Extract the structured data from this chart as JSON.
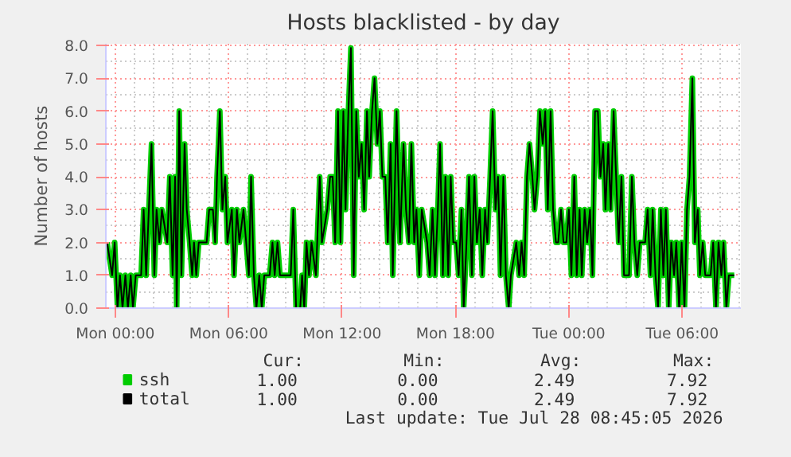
{
  "chart_data": {
    "type": "line",
    "title": "Hosts blacklisted - by day",
    "ylabel": "Number of hosts",
    "x": [
      "2026-07-26T23:34",
      "2026-07-26T23:50",
      "2026-07-26T23:58",
      "2026-07-27T00:07",
      "2026-07-27T00:15",
      "2026-07-27T00:23",
      "2026-07-27T00:32",
      "2026-07-27T00:40",
      "2026-07-27T00:49",
      "2026-07-27T00:56",
      "2026-07-27T01:05",
      "2026-07-27T01:22",
      "2026-07-27T01:30",
      "2026-07-27T01:38",
      "2026-07-27T01:55",
      "2026-07-27T02:04",
      "2026-07-27T02:11",
      "2026-07-27T02:20",
      "2026-07-27T02:28",
      "2026-07-27T02:45",
      "2026-07-27T02:53",
      "2026-07-27T03:02",
      "2026-07-27T03:10",
      "2026-07-27T03:15",
      "2026-07-27T03:23",
      "2026-07-27T03:30",
      "2026-07-27T03:40",
      "2026-07-27T03:47",
      "2026-07-27T03:56",
      "2026-07-27T04:04",
      "2026-07-27T04:10",
      "2026-07-27T04:17",
      "2026-07-27T04:25",
      "2026-07-27T04:50",
      "2026-07-27T04:58",
      "2026-07-27T05:10",
      "2026-07-27T05:17",
      "2026-07-27T05:23",
      "2026-07-27T05:32",
      "2026-07-27T05:40",
      "2026-07-27T05:49",
      "2026-07-27T05:56",
      "2026-07-27T06:10",
      "2026-07-27T06:17",
      "2026-07-27T06:26",
      "2026-07-27T06:34",
      "2026-07-27T06:47",
      "2026-07-27T07:04",
      "2026-07-27T07:11",
      "2026-07-27T07:20",
      "2026-07-27T07:28",
      "2026-07-27T07:37",
      "2026-07-27T07:45",
      "2026-07-27T07:53",
      "2026-07-27T08:10",
      "2026-07-27T08:19",
      "2026-07-27T08:26",
      "2026-07-27T08:35",
      "2026-07-27T08:43",
      "2026-07-27T09:17",
      "2026-07-27T09:25",
      "2026-07-27T09:34",
      "2026-07-27T09:47",
      "2026-07-27T09:53",
      "2026-07-27T10:00",
      "2026-07-27T10:07",
      "2026-07-27T10:15",
      "2026-07-27T10:23",
      "2026-07-27T10:37",
      "2026-07-27T10:49",
      "2026-07-27T10:56",
      "2026-07-27T11:13",
      "2026-07-27T11:22",
      "2026-07-27T11:30",
      "2026-07-27T11:38",
      "2026-07-27T11:47",
      "2026-07-27T11:55",
      "2026-07-27T12:04",
      "2026-07-27T12:11",
      "2026-07-27T12:20",
      "2026-07-27T12:28",
      "2026-07-27T12:37",
      "2026-07-27T12:45",
      "2026-07-27T12:53",
      "2026-07-27T13:02",
      "2026-07-27T13:10",
      "2026-07-27T13:19",
      "2026-07-27T13:26",
      "2026-07-27T13:35",
      "2026-07-27T13:43",
      "2026-07-27T13:52",
      "2026-07-27T14:00",
      "2026-07-27T14:08",
      "2026-07-27T14:17",
      "2026-07-27T14:25",
      "2026-07-27T14:34",
      "2026-07-27T14:41",
      "2026-07-27T14:53",
      "2026-07-27T15:04",
      "2026-07-27T15:15",
      "2026-07-27T15:23",
      "2026-07-27T15:32",
      "2026-07-27T15:40",
      "2026-07-27T15:49",
      "2026-07-27T15:56",
      "2026-07-27T16:05",
      "2026-07-27T16:13",
      "2026-07-27T16:30",
      "2026-07-27T16:38",
      "2026-07-27T16:47",
      "2026-07-27T16:55",
      "2026-07-27T17:04",
      "2026-07-27T17:11",
      "2026-07-27T17:20",
      "2026-07-27T17:28",
      "2026-07-27T17:37",
      "2026-07-27T17:45",
      "2026-07-27T17:53",
      "2026-07-27T18:02",
      "2026-07-27T18:10",
      "2026-07-27T18:19",
      "2026-07-27T18:26",
      "2026-07-27T18:35",
      "2026-07-27T18:43",
      "2026-07-27T18:52",
      "2026-07-27T19:00",
      "2026-07-27T19:08",
      "2026-07-27T19:17",
      "2026-07-27T19:25",
      "2026-07-27T19:34",
      "2026-07-27T19:41",
      "2026-07-27T19:50",
      "2026-07-27T19:58",
      "2026-07-27T20:07",
      "2026-07-27T20:15",
      "2026-07-27T20:23",
      "2026-07-27T20:32",
      "2026-07-27T20:40",
      "2026-07-27T20:49",
      "2026-07-27T20:56",
      "2026-07-27T21:13",
      "2026-07-27T21:22",
      "2026-07-27T21:30",
      "2026-07-27T21:38",
      "2026-07-27T21:47",
      "2026-07-27T21:55",
      "2026-07-27T22:04",
      "2026-07-27T22:11",
      "2026-07-27T22:20",
      "2026-07-27T22:28",
      "2026-07-27T22:37",
      "2026-07-27T22:45",
      "2026-07-27T22:53",
      "2026-07-27T23:02",
      "2026-07-27T23:10",
      "2026-07-27T23:19",
      "2026-07-27T23:26",
      "2026-07-27T23:35",
      "2026-07-27T23:43",
      "2026-07-27T23:52",
      "2026-07-28T00:00",
      "2026-07-28T00:08",
      "2026-07-28T00:17",
      "2026-07-28T00:25",
      "2026-07-28T00:34",
      "2026-07-28T00:41",
      "2026-07-28T00:50",
      "2026-07-28T00:58",
      "2026-07-28T01:07",
      "2026-07-28T01:15",
      "2026-07-28T01:23",
      "2026-07-28T01:32",
      "2026-07-28T01:40",
      "2026-07-28T01:49",
      "2026-07-28T01:56",
      "2026-07-28T02:05",
      "2026-07-28T02:13",
      "2026-07-28T02:22",
      "2026-07-28T02:30",
      "2026-07-28T02:38",
      "2026-07-28T02:47",
      "2026-07-28T02:55",
      "2026-07-28T03:11",
      "2026-07-28T03:20",
      "2026-07-28T03:28",
      "2026-07-28T03:37",
      "2026-07-28T03:45",
      "2026-07-28T04:02",
      "2026-07-28T04:10",
      "2026-07-28T04:19",
      "2026-07-28T04:26",
      "2026-07-28T04:35",
      "2026-07-28T04:43",
      "2026-07-28T04:52",
      "2026-07-28T05:00",
      "2026-07-28T05:08",
      "2026-07-28T05:17",
      "2026-07-28T05:25",
      "2026-07-28T05:34",
      "2026-07-28T05:41",
      "2026-07-28T05:50",
      "2026-07-28T05:58",
      "2026-07-28T06:07",
      "2026-07-28T06:15",
      "2026-07-28T06:23",
      "2026-07-28T06:32",
      "2026-07-28T06:40",
      "2026-07-28T06:49",
      "2026-07-28T06:56",
      "2026-07-28T07:05",
      "2026-07-28T07:13",
      "2026-07-28T07:30",
      "2026-07-28T07:38",
      "2026-07-28T07:47",
      "2026-07-28T07:55",
      "2026-07-28T08:04",
      "2026-07-28T08:11",
      "2026-07-28T08:20",
      "2026-07-28T08:28",
      "2026-07-28T08:45"
    ],
    "series": [
      {
        "name": "ssh",
        "color": "#00cc00",
        "values": [
          2,
          1,
          2,
          0,
          1,
          0,
          1,
          0,
          1,
          0,
          1,
          1,
          3,
          1,
          5,
          1,
          3,
          2,
          3,
          2,
          4,
          1,
          4,
          0,
          6,
          1,
          5,
          3,
          2,
          1,
          2,
          1,
          2,
          2,
          3,
          3,
          2,
          4,
          6,
          3,
          4,
          2,
          3,
          1,
          3,
          2,
          3,
          1,
          4,
          1,
          0,
          1,
          0,
          1,
          1,
          2,
          1,
          2,
          1,
          1,
          3,
          0,
          0,
          1,
          0,
          2,
          1,
          2,
          1,
          4,
          2,
          3,
          4,
          4,
          2,
          6,
          2,
          6,
          3,
          6,
          7.92,
          1,
          6,
          4,
          5,
          3,
          6,
          4,
          6,
          7,
          5,
          6,
          4,
          4,
          2,
          5,
          1,
          6,
          2,
          5,
          3,
          2,
          5,
          2,
          3,
          1,
          3,
          2,
          1,
          3,
          1,
          3,
          5,
          1,
          4,
          1,
          4,
          2,
          2,
          1,
          3,
          0,
          2,
          4,
          1,
          4,
          2,
          3,
          1,
          3,
          2,
          4,
          6,
          3,
          4,
          1,
          4,
          1,
          0,
          1,
          2,
          1,
          2,
          1,
          4,
          5,
          4,
          3,
          4,
          6,
          5,
          6,
          3,
          6,
          3,
          2,
          2,
          3,
          2,
          2,
          3,
          1,
          4,
          1,
          3,
          1,
          3,
          2,
          3,
          1,
          6,
          6,
          4,
          5,
          3,
          5,
          3,
          6,
          4,
          2,
          4,
          1,
          1,
          4,
          2,
          1,
          2,
          2,
          3,
          1,
          3,
          1,
          0,
          3,
          1,
          3,
          0,
          2,
          1,
          2,
          0,
          2,
          0,
          3,
          4,
          7,
          2,
          3,
          1,
          2,
          1,
          1,
          2,
          0,
          2,
          1,
          2,
          0,
          1,
          1
        ]
      },
      {
        "name": "total",
        "color": "#000000",
        "values": [
          2,
          1,
          2,
          0,
          1,
          0,
          1,
          0,
          1,
          0,
          1,
          1,
          3,
          1,
          5,
          1,
          3,
          2,
          3,
          2,
          4,
          1,
          4,
          0,
          6,
          1,
          5,
          3,
          2,
          1,
          2,
          1,
          2,
          2,
          3,
          3,
          2,
          4,
          6,
          3,
          4,
          2,
          3,
          1,
          3,
          2,
          3,
          1,
          4,
          1,
          0,
          1,
          0,
          1,
          1,
          2,
          1,
          2,
          1,
          1,
          3,
          0,
          0,
          1,
          0,
          2,
          1,
          2,
          1,
          4,
          2,
          3,
          4,
          4,
          2,
          6,
          2,
          6,
          3,
          6,
          7.92,
          1,
          6,
          4,
          5,
          3,
          6,
          4,
          6,
          7,
          5,
          6,
          4,
          4,
          2,
          5,
          1,
          6,
          2,
          5,
          3,
          2,
          5,
          2,
          3,
          1,
          3,
          2,
          1,
          3,
          1,
          3,
          5,
          1,
          4,
          1,
          4,
          2,
          2,
          1,
          3,
          0,
          2,
          4,
          1,
          4,
          2,
          3,
          1,
          3,
          2,
          4,
          6,
          3,
          4,
          1,
          4,
          1,
          0,
          1,
          2,
          1,
          2,
          1,
          4,
          5,
          4,
          3,
          4,
          6,
          5,
          6,
          3,
          6,
          3,
          2,
          2,
          3,
          2,
          2,
          3,
          1,
          4,
          1,
          3,
          1,
          3,
          2,
          3,
          1,
          6,
          6,
          4,
          5,
          3,
          5,
          3,
          6,
          4,
          2,
          4,
          1,
          1,
          4,
          2,
          1,
          2,
          2,
          3,
          1,
          3,
          1,
          0,
          3,
          1,
          3,
          0,
          2,
          1,
          2,
          0,
          2,
          0,
          3,
          4,
          7,
          2,
          3,
          1,
          2,
          1,
          1,
          2,
          0,
          2,
          1,
          2,
          0,
          1,
          1
        ]
      }
    ],
    "xlim": [
      "2026-07-26T23:30",
      "2026-07-28T09:06"
    ],
    "xticks": [
      {
        "value": "2026-07-27T00:00",
        "label": "Mon 00:00"
      },
      {
        "value": "2026-07-27T06:00",
        "label": "Mon 06:00"
      },
      {
        "value": "2026-07-27T12:00",
        "label": "Mon 12:00"
      },
      {
        "value": "2026-07-27T18:00",
        "label": "Mon 18:00"
      },
      {
        "value": "2026-07-28T00:00",
        "label": "Tue 00:00"
      },
      {
        "value": "2026-07-28T06:00",
        "label": "Tue 06:00"
      }
    ],
    "ylim": [
      0,
      8.05
    ],
    "yticks": [
      {
        "value": 0,
        "label": "0.0"
      },
      {
        "value": 1,
        "label": "1.0"
      },
      {
        "value": 2,
        "label": "2.0"
      },
      {
        "value": 3,
        "label": "3.0"
      },
      {
        "value": 4,
        "label": "4.0"
      },
      {
        "value": 5,
        "label": "5.0"
      },
      {
        "value": 6,
        "label": "6.0"
      },
      {
        "value": 7,
        "label": "7.0"
      },
      {
        "value": 8,
        "label": "8.0"
      }
    ],
    "grid": true,
    "legend": "bottom",
    "line_style": "solid",
    "annotations": [
      "Cur:",
      "Min:",
      "Avg:",
      "Max:",
      "1.00",
      "0.00",
      "2.49",
      "7.92",
      "1.00",
      "0.00",
      "2.49",
      "7.92",
      "Last update: Tue Jul 28 08:45:05 2026"
    ]
  }
}
